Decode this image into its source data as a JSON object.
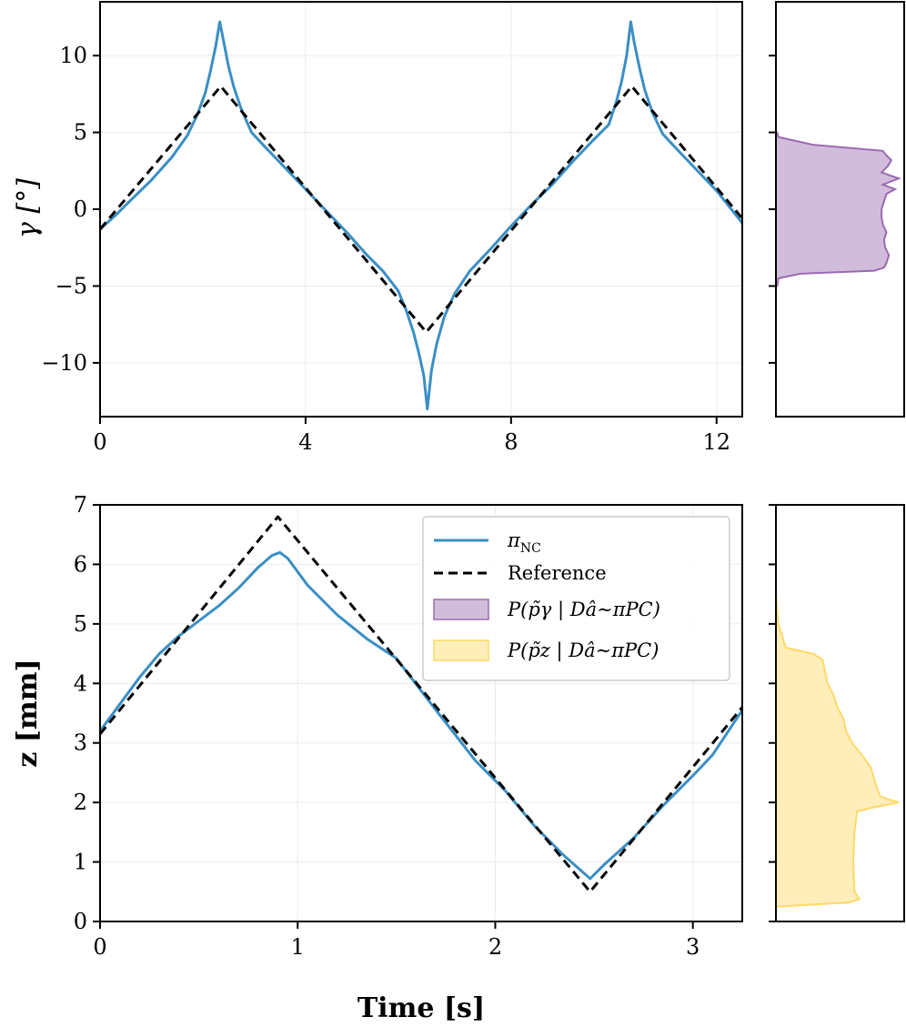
{
  "chart_data": [
    {
      "id": "gamma",
      "type": "line",
      "xlabel": "",
      "ylabel": "γ [°]",
      "xlim": [
        0,
        12.5
      ],
      "ylim": [
        -13.5,
        13.5
      ],
      "xticks": [
        0,
        4,
        8,
        12
      ],
      "yticks": [
        -10,
        -5,
        0,
        5,
        10
      ],
      "xtick_labels": [
        "0",
        "4",
        "8",
        "12"
      ],
      "ytick_labels": [
        "−10",
        "−5",
        "0",
        "5",
        "10"
      ],
      "grid": true,
      "series": [
        {
          "name": "π_NC",
          "color": "#3a8fc4",
          "style": "solid",
          "x": [
            0.0,
            0.3,
            0.6,
            1.0,
            1.4,
            1.7,
            1.9,
            2.05,
            2.15,
            2.25,
            2.33,
            2.4,
            2.5,
            2.6,
            2.75,
            2.95,
            3.2,
            3.6,
            4.0,
            4.4,
            4.8,
            5.2,
            5.5,
            5.8,
            5.95,
            6.1,
            6.2,
            6.3,
            6.37,
            6.45,
            6.55,
            6.7,
            6.9,
            7.2,
            7.6,
            8.0,
            8.4,
            8.8,
            9.2,
            9.6,
            9.9,
            10.05,
            10.15,
            10.25,
            10.33,
            10.4,
            10.5,
            10.6,
            10.75,
            10.95,
            11.2,
            11.6,
            12.0,
            12.5
          ],
          "y": [
            -1.3,
            -0.4,
            0.6,
            1.9,
            3.4,
            4.8,
            6.2,
            7.6,
            9.0,
            10.6,
            12.2,
            11.0,
            9.3,
            8.0,
            6.5,
            5.0,
            4.1,
            2.7,
            1.3,
            -0.1,
            -1.5,
            -3.0,
            -4.0,
            -5.3,
            -6.5,
            -8.0,
            -9.3,
            -10.8,
            -13.0,
            -10.5,
            -8.8,
            -7.0,
            -5.5,
            -4.0,
            -2.6,
            -1.1,
            0.3,
            1.6,
            3.1,
            4.5,
            5.5,
            7.0,
            8.3,
            10.0,
            12.2,
            10.8,
            9.2,
            7.8,
            6.3,
            4.9,
            4.0,
            2.6,
            1.2,
            -0.9
          ]
        },
        {
          "name": "Reference",
          "color": "#000000",
          "style": "dashed",
          "x": [
            0.0,
            2.35,
            6.35,
            10.35,
            12.5
          ],
          "y": [
            -1.3,
            8.0,
            -8.0,
            8.0,
            -0.6
          ]
        }
      ],
      "side_distribution": {
        "name": "P(p̃_γ | D_â~π_PC)",
        "color": "#9b6bb0",
        "y": [
          -5.0,
          -4.5,
          -4.2,
          -4.0,
          -3.8,
          -3.5,
          -3.0,
          -2.5,
          -2.0,
          -1.5,
          -1.0,
          -0.5,
          0.0,
          0.5,
          1.0,
          1.3,
          1.6,
          2.0,
          2.4,
          2.8,
          3.2,
          3.5,
          3.8,
          4.2,
          4.7,
          5.0
        ],
        "density": [
          0.01,
          0.02,
          0.2,
          0.8,
          0.88,
          0.9,
          0.92,
          0.89,
          0.88,
          0.9,
          0.87,
          0.86,
          0.86,
          0.88,
          0.9,
          0.97,
          0.87,
          1.0,
          0.86,
          0.91,
          0.94,
          0.9,
          0.87,
          0.3,
          0.02,
          0.01
        ]
      }
    },
    {
      "id": "z",
      "type": "line",
      "xlabel": "Time [s]",
      "ylabel": "z [mm]",
      "xlim": [
        0,
        3.25
      ],
      "ylim": [
        0,
        7
      ],
      "xticks": [
        0,
        1,
        2,
        3
      ],
      "yticks": [
        0,
        1,
        2,
        3,
        4,
        5,
        6,
        7
      ],
      "xtick_labels": [
        "0",
        "1",
        "2",
        "3"
      ],
      "ytick_labels": [
        "0",
        "1",
        "2",
        "3",
        "4",
        "5",
        "6",
        "7"
      ],
      "grid": true,
      "series": [
        {
          "name": "π_NC",
          "color": "#3a8fc4",
          "style": "solid",
          "x": [
            0.0,
            0.1,
            0.2,
            0.3,
            0.4,
            0.5,
            0.6,
            0.7,
            0.8,
            0.87,
            0.91,
            0.95,
            1.05,
            1.2,
            1.35,
            1.5,
            1.7,
            1.9,
            2.05,
            2.2,
            2.35,
            2.48,
            2.55,
            2.7,
            2.85,
            3.0,
            3.1,
            3.25
          ],
          "y": [
            3.2,
            3.65,
            4.1,
            4.5,
            4.8,
            5.05,
            5.3,
            5.6,
            5.95,
            6.15,
            6.2,
            6.1,
            5.65,
            5.15,
            4.75,
            4.42,
            3.55,
            2.7,
            2.2,
            1.6,
            1.1,
            0.72,
            0.95,
            1.4,
            1.95,
            2.45,
            2.8,
            3.55
          ]
        },
        {
          "name": "Reference",
          "color": "#000000",
          "style": "dashed",
          "x": [
            0.0,
            0.9,
            2.48,
            3.25
          ],
          "y": [
            3.15,
            6.8,
            0.5,
            3.6
          ]
        }
      ],
      "side_distribution": {
        "name": "P(p̃_z | D_â~π_PC)",
        "color": "#ffd966",
        "y": [
          0.25,
          0.32,
          0.38,
          0.5,
          1.0,
          1.5,
          1.85,
          1.92,
          2.0,
          2.05,
          2.1,
          2.2,
          2.4,
          2.6,
          2.8,
          3.0,
          3.2,
          3.4,
          3.6,
          3.8,
          4.0,
          4.2,
          4.4,
          4.5,
          4.6,
          5.0,
          5.5
        ],
        "density": [
          0.01,
          0.6,
          0.68,
          0.64,
          0.63,
          0.64,
          0.66,
          0.8,
          1.0,
          0.92,
          0.85,
          0.83,
          0.8,
          0.77,
          0.7,
          0.62,
          0.57,
          0.55,
          0.5,
          0.47,
          0.42,
          0.4,
          0.38,
          0.3,
          0.08,
          0.02,
          0.0
        ]
      }
    }
  ],
  "legend": {
    "entries": [
      {
        "label": "π",
        "sub": "NC",
        "kind": "line",
        "color": "#3a8fc4"
      },
      {
        "label": "Reference",
        "sub": "",
        "kind": "dashed",
        "color": "#000000"
      },
      {
        "label": "P(p̃γ | Dâ∼πPC)",
        "sub": "",
        "kind": "patch",
        "color": "#9b6bb0"
      },
      {
        "label": "P(p̃z | Dâ∼πPC)",
        "sub": "",
        "kind": "patch",
        "color": "#ffd966"
      }
    ]
  }
}
